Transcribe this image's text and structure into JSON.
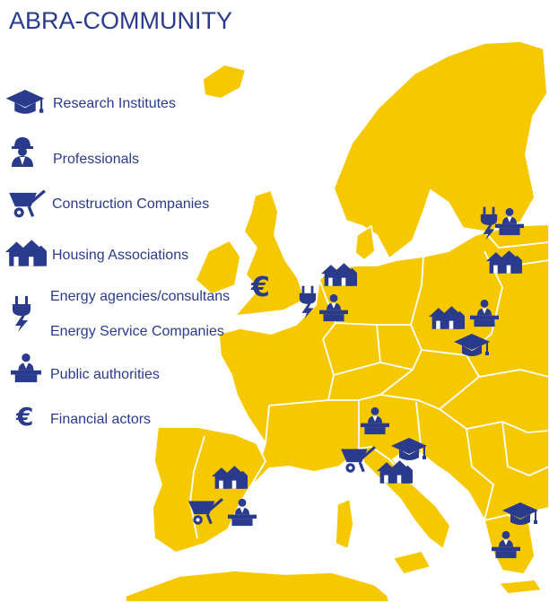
{
  "title": "ABRA-COMMUNITY",
  "colors": {
    "land": "#f6c800",
    "sea": "#ffffff",
    "border": "#ffffff",
    "icon": "#2a3a8c",
    "text": "#2a3a8c"
  },
  "legend": [
    {
      "icon": "graduation-cap-icon",
      "label": "Research Institutes"
    },
    {
      "icon": "worker-helmet-icon",
      "label": "Professionals"
    },
    {
      "icon": "wheelbarrow-icon",
      "label": "Construction Companies"
    },
    {
      "icon": "houses-icon",
      "label": "Housing Associations"
    },
    {
      "icon": "energy-plug-icon",
      "label": "Energy agencies/consultans"
    },
    {
      "icon": "energy-plug-icon",
      "label": "Energy Service Companies"
    },
    {
      "icon": "speaker-podium-icon",
      "label": "Public authorities"
    },
    {
      "icon": "euro-icon",
      "label": "Financial actors"
    }
  ],
  "map_markers": [
    {
      "region": "United Kingdom",
      "icon": "euro-icon"
    },
    {
      "region": "Netherlands",
      "icon": "energy-plug-icon"
    },
    {
      "region": "Netherlands",
      "icon": "houses-icon"
    },
    {
      "region": "Netherlands",
      "icon": "speaker-podium-icon"
    },
    {
      "region": "Baltic states",
      "icon": "energy-plug-icon"
    },
    {
      "region": "Baltic states",
      "icon": "speaker-podium-icon"
    },
    {
      "region": "Baltic states",
      "icon": "houses-icon"
    },
    {
      "region": "Poland",
      "icon": "houses-icon"
    },
    {
      "region": "Poland",
      "icon": "speaker-podium-icon"
    },
    {
      "region": "Poland",
      "icon": "graduation-cap-icon"
    },
    {
      "region": "Austria",
      "icon": "speaker-podium-icon"
    },
    {
      "region": "Italy",
      "icon": "wheelbarrow-icon"
    },
    {
      "region": "Italy",
      "icon": "graduation-cap-icon"
    },
    {
      "region": "Italy",
      "icon": "houses-icon"
    },
    {
      "region": "Spain",
      "icon": "houses-icon"
    },
    {
      "region": "Spain",
      "icon": "wheelbarrow-icon"
    },
    {
      "region": "Spain",
      "icon": "speaker-podium-icon"
    },
    {
      "region": "Greece",
      "icon": "graduation-cap-icon"
    },
    {
      "region": "Greece",
      "icon": "speaker-podium-icon"
    }
  ]
}
